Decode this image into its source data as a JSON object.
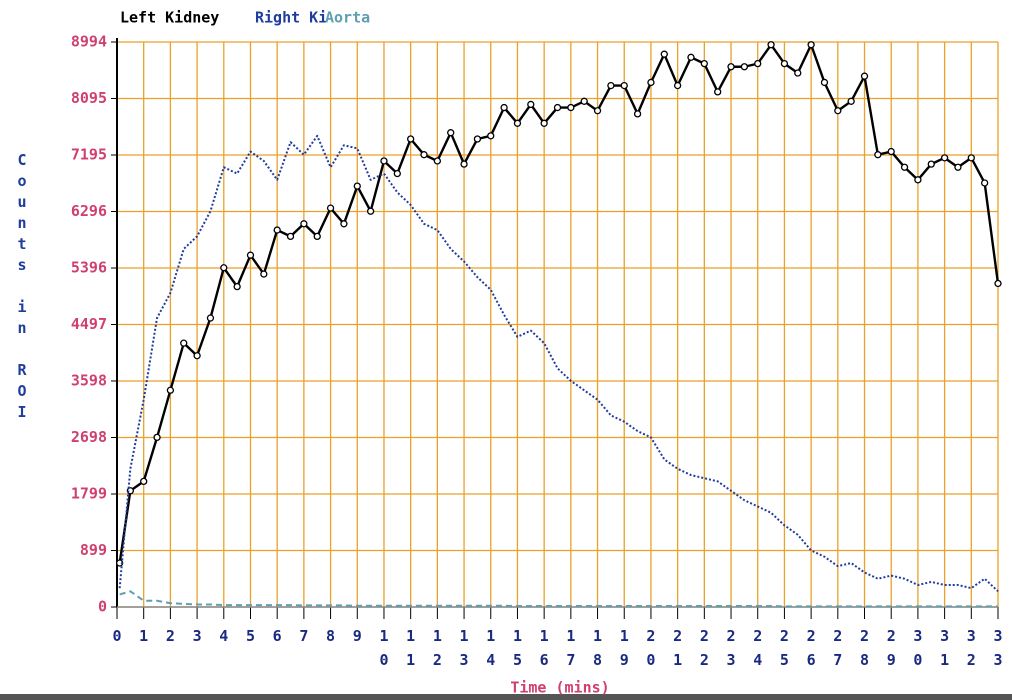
{
  "chart_data": {
    "type": "line",
    "xlabel": "Time (mins)",
    "ylabel": "Counts in ROI",
    "x": [
      0.1,
      0.5,
      1,
      1.5,
      2,
      2.5,
      3,
      3.5,
      4,
      4.5,
      5,
      5.5,
      6,
      6.5,
      7,
      7.5,
      8,
      8.5,
      9,
      9.5,
      10,
      10.5,
      11,
      11.5,
      12,
      12.5,
      13,
      13.5,
      14,
      14.5,
      15,
      15.5,
      16,
      16.5,
      17,
      17.5,
      18,
      18.5,
      19,
      19.5,
      20,
      20.5,
      21,
      21.5,
      22,
      22.5,
      23,
      23.5,
      24,
      24.5,
      25,
      25.5,
      26,
      26.5,
      27,
      27.5,
      28,
      28.5,
      29,
      29.5,
      30,
      30.5,
      31,
      31.5,
      32,
      32.5,
      33
    ],
    "series": [
      {
        "name": "Left Kidney",
        "color": "#000000",
        "values": [
          700,
          1850,
          2000,
          2700,
          3450,
          4200,
          4000,
          4600,
          5400,
          5100,
          5600,
          5300,
          6000,
          5900,
          6100,
          5900,
          6350,
          6100,
          6700,
          6300,
          7100,
          6900,
          7450,
          7200,
          7100,
          7550,
          7050,
          7450,
          7500,
          7950,
          7700,
          8000,
          7700,
          7950,
          7950,
          8050,
          7900,
          8300,
          8300,
          7850,
          8350,
          8800,
          8300,
          8750,
          8650,
          8200,
          8600,
          8600,
          8650,
          8950,
          8650,
          8500,
          8950,
          8350,
          7900,
          8050,
          8450,
          7200,
          7250,
          7000,
          6800,
          7050,
          7150,
          7000,
          7150,
          6750,
          5150
        ]
      },
      {
        "name": "Right Ki",
        "color": "#1f3d9e",
        "values": [
          300,
          2200,
          3300,
          4600,
          5000,
          5700,
          5900,
          6300,
          7000,
          6900,
          7250,
          7100,
          6800,
          7400,
          7200,
          7500,
          7000,
          7350,
          7300,
          6800,
          6900,
          6600,
          6400,
          6100,
          6000,
          5700,
          5500,
          5250,
          5050,
          4650,
          4300,
          4400,
          4200,
          3800,
          3600,
          3450,
          3300,
          3050,
          2950,
          2800,
          2700,
          2350,
          2200,
          2100,
          2050,
          2000,
          1850,
          1700,
          1600,
          1500,
          1300,
          1150,
          900,
          800,
          650,
          700,
          550,
          450,
          500,
          450,
          350,
          400,
          350,
          350,
          300,
          450,
          250
        ]
      },
      {
        "name": "Aorta",
        "color": "#5f9fb3",
        "values": [
          200,
          250,
          100,
          100,
          60,
          50,
          40,
          40,
          30,
          30,
          30,
          30,
          30,
          30,
          25,
          25,
          25,
          25,
          20,
          20,
          20,
          20,
          20,
          20,
          20,
          20,
          20,
          20,
          20,
          20,
          15,
          15,
          15,
          15,
          15,
          15,
          15,
          15,
          15,
          15,
          15,
          15,
          15,
          15,
          15,
          15,
          15,
          15,
          15,
          15,
          10,
          10,
          10,
          10,
          10,
          10,
          10,
          10,
          10,
          10,
          10,
          10,
          10,
          10,
          10,
          10,
          10
        ]
      }
    ],
    "xlim": [
      0,
      33
    ],
    "xticks": [
      0,
      1,
      2,
      3,
      4,
      5,
      6,
      7,
      8,
      9,
      10,
      11,
      12,
      13,
      14,
      15,
      16,
      17,
      18,
      19,
      20,
      21,
      22,
      23,
      24,
      25,
      26,
      27,
      28,
      29,
      30,
      31,
      32,
      33
    ],
    "ylim": [
      0,
      8994
    ],
    "yticks": [
      0,
      899,
      1799,
      2698,
      3598,
      4497,
      5396,
      6296,
      7195,
      8095,
      8994
    ],
    "grid": true
  }
}
